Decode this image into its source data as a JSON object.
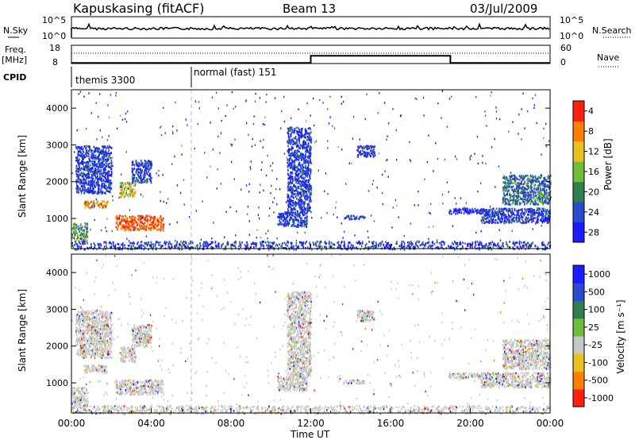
{
  "header": {
    "station": "Kapuskasing (fitACF)",
    "beam": "Beam 13",
    "date": "03/Jul/2009"
  },
  "top_panels": {
    "nsky_label": "N.Sky",
    "nsky_ticks": [
      "10^5",
      "10^0"
    ],
    "nsearch_label": "N.Search",
    "nsearch_ticks": [
      "10^5",
      "10^0"
    ],
    "freq_label": "Freq.",
    "freq_unit": "[MHz]",
    "freq_ticks": [
      "18",
      "8"
    ],
    "nave_label": "Nave",
    "nave_ticks": [
      "60",
      "0"
    ],
    "cpid_label": "CPID",
    "cpid_segments": [
      {
        "label": "themis 3300",
        "start_hour": 0,
        "end_hour": 6
      },
      {
        "label": "normal (fast) 151",
        "start_hour": 6,
        "end_hour": 24
      }
    ]
  },
  "panels": {
    "power": {
      "ylabel": "Slant Range [km]",
      "yticks": [
        "1000",
        "2000",
        "3000",
        "4000"
      ],
      "colorbar_label": "Power [dB]",
      "colorbar_ticks": [
        "4",
        "8",
        "12",
        "16",
        "20",
        "24",
        "28"
      ],
      "colors": [
        "#1b1bff",
        "#2a4bd0",
        "#2f7f50",
        "#6fbd3a",
        "#e8c020",
        "#ff8000",
        "#ff2010"
      ]
    },
    "velocity": {
      "ylabel": "Slant Range [km]",
      "yticks": [
        "1000",
        "2000",
        "3000",
        "4000"
      ],
      "colorbar_label": "Velocity [m s⁻¹]",
      "colorbar_ticks": [
        "1000",
        "500",
        "100",
        "25",
        "-25",
        "-100",
        "-500",
        "-1000"
      ],
      "colors": [
        "#1b1bff",
        "#2a4bd0",
        "#2f7f50",
        "#6fbd3a",
        "#c8c8c8",
        "#e8c020",
        "#ff8000",
        "#ff2010"
      ]
    }
  },
  "time_axis": {
    "label": "Time UT",
    "ticks": [
      "00:00",
      "04:00",
      "08:00",
      "12:00",
      "16:00",
      "20:00",
      "00:00"
    ]
  },
  "chart_data": {
    "type": "heatmap",
    "x_range_hours": [
      0,
      24
    ],
    "y_range_km": [
      180,
      4500
    ],
    "mode_change_hour": 6,
    "freq_mhz": {
      "steps": [
        {
          "x": 0,
          "y": 8.3
        },
        {
          "x": 12,
          "y": 8.3
        },
        {
          "x": 12,
          "y": 12.2
        },
        {
          "x": 19,
          "y": 12.2
        },
        {
          "x": 19,
          "y": 8.3
        },
        {
          "x": 24,
          "y": 8.3
        }
      ]
    },
    "power_regions": [
      {
        "t0": 0.6,
        "t1": 1.8,
        "r0": 1300,
        "r1": 1500,
        "level": 5
      },
      {
        "t0": 2.2,
        "t1": 4.6,
        "r0": 700,
        "r1": 1100,
        "level": 6
      },
      {
        "t0": 2.4,
        "t1": 3.2,
        "r0": 1600,
        "r1": 2000,
        "level": 4
      },
      {
        "t0": 3.0,
        "t1": 4.0,
        "r0": 2000,
        "r1": 2600,
        "level": 1
      },
      {
        "t0": 0.0,
        "t1": 0.8,
        "r0": 400,
        "r1": 900,
        "level": 3
      },
      {
        "t0": 0.2,
        "t1": 2.0,
        "r0": 1700,
        "r1": 3000,
        "level": 1
      },
      {
        "t0": 10.3,
        "t1": 11.8,
        "r0": 800,
        "r1": 1200,
        "level": 1
      },
      {
        "t0": 10.8,
        "t1": 12.0,
        "r0": 1200,
        "r1": 3500,
        "level": 1
      },
      {
        "t0": 13.6,
        "t1": 14.7,
        "r0": 1000,
        "r1": 1100,
        "level": 1
      },
      {
        "t0": 14.3,
        "t1": 15.2,
        "r0": 2700,
        "r1": 3000,
        "level": 1
      },
      {
        "t0": 18.9,
        "t1": 20.8,
        "r0": 1150,
        "r1": 1300,
        "level": 0
      },
      {
        "t0": 20.5,
        "t1": 24.0,
        "r0": 900,
        "r1": 1300,
        "level": 1
      },
      {
        "t0": 21.6,
        "t1": 24.0,
        "r0": 1400,
        "r1": 2200,
        "level": 2
      },
      {
        "t0": 0.0,
        "t1": 24.0,
        "r0": 180,
        "r1": 400,
        "level": 1
      }
    ]
  }
}
